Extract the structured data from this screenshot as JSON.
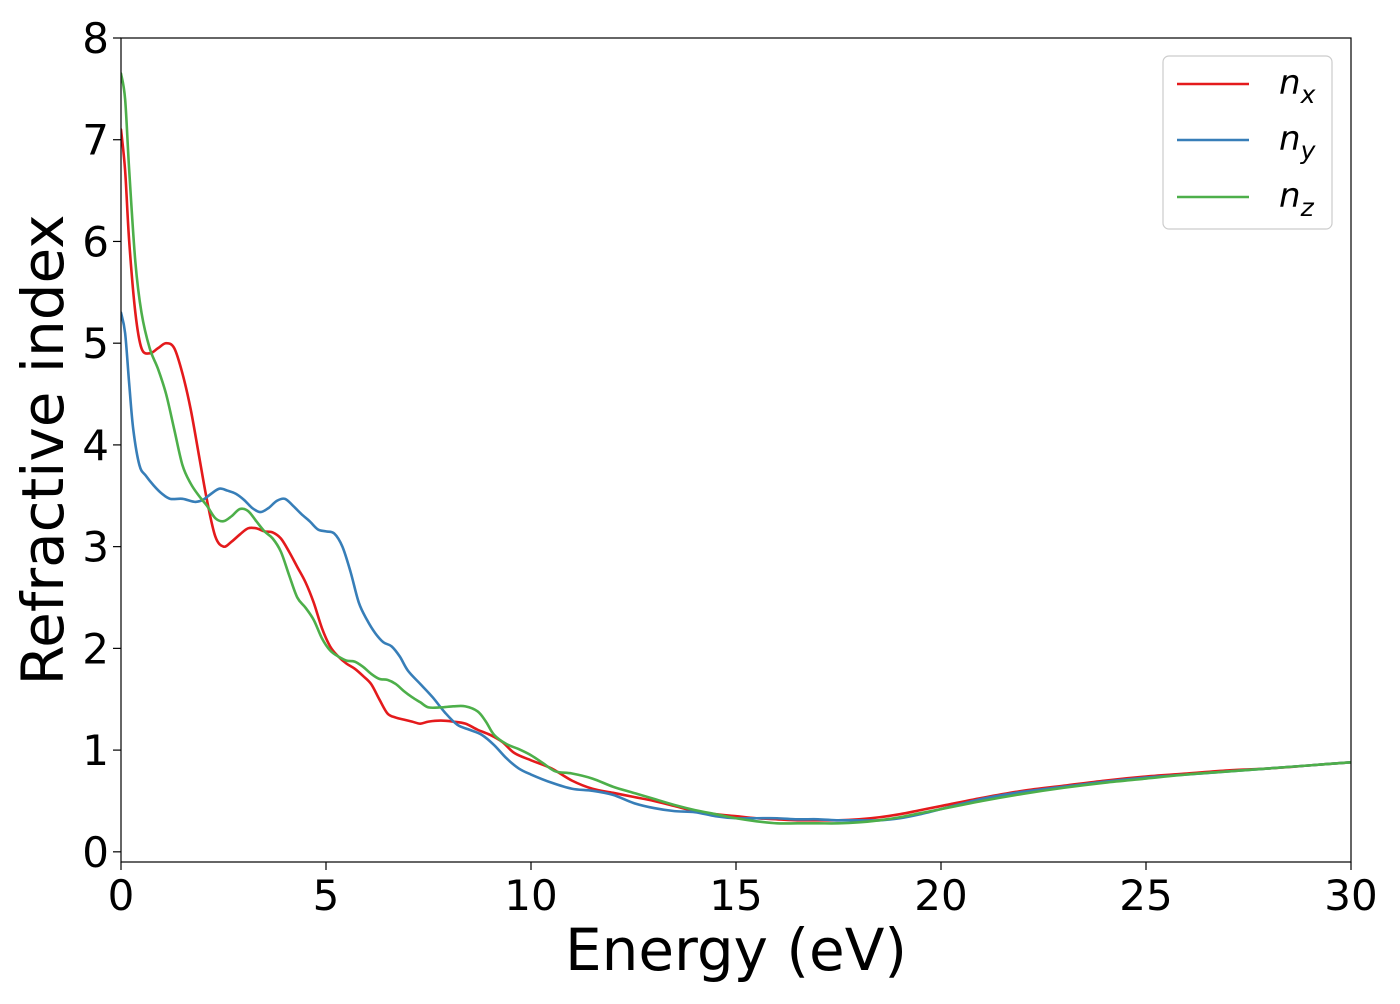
{
  "chart_data": {
    "type": "line",
    "xlabel": "Energy (eV)",
    "ylabel": "Refractive index",
    "xlim": [
      0,
      30
    ],
    "ylim": [
      -0.1,
      8
    ],
    "xticks": [
      0,
      5,
      10,
      15,
      20,
      25,
      30
    ],
    "yticks": [
      0,
      1,
      2,
      3,
      4,
      5,
      6,
      7,
      8
    ],
    "grid": false,
    "legend_position": "top-right",
    "series": [
      {
        "name": "n",
        "subscript": "x",
        "color": "#e41a1c",
        "points": [
          [
            0.0,
            7.1
          ],
          [
            0.1,
            6.7
          ],
          [
            0.2,
            6.0
          ],
          [
            0.35,
            5.3
          ],
          [
            0.5,
            4.95
          ],
          [
            0.7,
            4.9
          ],
          [
            0.9,
            4.95
          ],
          [
            1.1,
            5.0
          ],
          [
            1.3,
            4.95
          ],
          [
            1.5,
            4.7
          ],
          [
            1.7,
            4.35
          ],
          [
            1.9,
            3.9
          ],
          [
            2.1,
            3.45
          ],
          [
            2.3,
            3.1
          ],
          [
            2.5,
            3.0
          ],
          [
            2.7,
            3.05
          ],
          [
            2.9,
            3.12
          ],
          [
            3.1,
            3.18
          ],
          [
            3.3,
            3.18
          ],
          [
            3.5,
            3.15
          ],
          [
            3.7,
            3.14
          ],
          [
            3.9,
            3.08
          ],
          [
            4.1,
            2.95
          ],
          [
            4.3,
            2.8
          ],
          [
            4.5,
            2.65
          ],
          [
            4.7,
            2.45
          ],
          [
            4.9,
            2.2
          ],
          [
            5.1,
            2.02
          ],
          [
            5.3,
            1.92
          ],
          [
            5.5,
            1.85
          ],
          [
            5.7,
            1.8
          ],
          [
            5.9,
            1.73
          ],
          [
            6.1,
            1.65
          ],
          [
            6.3,
            1.5
          ],
          [
            6.5,
            1.36
          ],
          [
            6.7,
            1.32
          ],
          [
            6.9,
            1.3
          ],
          [
            7.1,
            1.28
          ],
          [
            7.3,
            1.26
          ],
          [
            7.5,
            1.28
          ],
          [
            7.8,
            1.29
          ],
          [
            8.1,
            1.28
          ],
          [
            8.4,
            1.26
          ],
          [
            8.7,
            1.2
          ],
          [
            9.0,
            1.15
          ],
          [
            9.3,
            1.08
          ],
          [
            9.6,
            0.97
          ],
          [
            10.0,
            0.9
          ],
          [
            10.5,
            0.82
          ],
          [
            11.0,
            0.7
          ],
          [
            11.5,
            0.62
          ],
          [
            12.0,
            0.58
          ],
          [
            12.5,
            0.54
          ],
          [
            13.0,
            0.5
          ],
          [
            13.5,
            0.45
          ],
          [
            14.0,
            0.4
          ],
          [
            14.5,
            0.37
          ],
          [
            15.0,
            0.35
          ],
          [
            15.5,
            0.33
          ],
          [
            16.0,
            0.32
          ],
          [
            16.5,
            0.31
          ],
          [
            17.0,
            0.31
          ],
          [
            17.5,
            0.31
          ],
          [
            18.0,
            0.32
          ],
          [
            18.5,
            0.34
          ],
          [
            19.0,
            0.37
          ],
          [
            19.5,
            0.41
          ],
          [
            20.0,
            0.45
          ],
          [
            21.0,
            0.53
          ],
          [
            22.0,
            0.6
          ],
          [
            23.0,
            0.65
          ],
          [
            24.0,
            0.7
          ],
          [
            25.0,
            0.74
          ],
          [
            26.0,
            0.77
          ],
          [
            27.0,
            0.8
          ],
          [
            28.0,
            0.82
          ],
          [
            29.0,
            0.85
          ],
          [
            30.0,
            0.88
          ]
        ]
      },
      {
        "name": "n",
        "subscript": "y",
        "color": "#377eb8",
        "points": [
          [
            0.0,
            5.3
          ],
          [
            0.1,
            5.1
          ],
          [
            0.2,
            4.6
          ],
          [
            0.3,
            4.15
          ],
          [
            0.45,
            3.8
          ],
          [
            0.6,
            3.7
          ],
          [
            0.8,
            3.6
          ],
          [
            1.0,
            3.52
          ],
          [
            1.2,
            3.47
          ],
          [
            1.5,
            3.47
          ],
          [
            1.8,
            3.44
          ],
          [
            2.0,
            3.46
          ],
          [
            2.2,
            3.52
          ],
          [
            2.4,
            3.57
          ],
          [
            2.6,
            3.55
          ],
          [
            2.8,
            3.52
          ],
          [
            3.0,
            3.46
          ],
          [
            3.2,
            3.38
          ],
          [
            3.4,
            3.34
          ],
          [
            3.6,
            3.38
          ],
          [
            3.8,
            3.45
          ],
          [
            4.0,
            3.47
          ],
          [
            4.2,
            3.4
          ],
          [
            4.4,
            3.32
          ],
          [
            4.6,
            3.25
          ],
          [
            4.8,
            3.17
          ],
          [
            5.0,
            3.15
          ],
          [
            5.2,
            3.13
          ],
          [
            5.4,
            3.0
          ],
          [
            5.6,
            2.75
          ],
          [
            5.8,
            2.45
          ],
          [
            6.0,
            2.28
          ],
          [
            6.2,
            2.15
          ],
          [
            6.4,
            2.06
          ],
          [
            6.6,
            2.02
          ],
          [
            6.8,
            1.92
          ],
          [
            7.0,
            1.78
          ],
          [
            7.3,
            1.65
          ],
          [
            7.6,
            1.52
          ],
          [
            7.9,
            1.37
          ],
          [
            8.2,
            1.25
          ],
          [
            8.5,
            1.2
          ],
          [
            8.8,
            1.15
          ],
          [
            9.1,
            1.05
          ],
          [
            9.4,
            0.92
          ],
          [
            9.7,
            0.82
          ],
          [
            10.0,
            0.76
          ],
          [
            10.5,
            0.68
          ],
          [
            11.0,
            0.62
          ],
          [
            11.5,
            0.6
          ],
          [
            12.0,
            0.56
          ],
          [
            12.5,
            0.48
          ],
          [
            13.0,
            0.43
          ],
          [
            13.5,
            0.4
          ],
          [
            14.0,
            0.39
          ],
          [
            14.5,
            0.35
          ],
          [
            15.0,
            0.33
          ],
          [
            15.5,
            0.33
          ],
          [
            16.0,
            0.33
          ],
          [
            16.5,
            0.32
          ],
          [
            17.0,
            0.32
          ],
          [
            17.5,
            0.31
          ],
          [
            18.0,
            0.31
          ],
          [
            18.5,
            0.31
          ],
          [
            19.0,
            0.33
          ],
          [
            19.5,
            0.37
          ],
          [
            20.0,
            0.42
          ],
          [
            21.0,
            0.52
          ],
          [
            22.0,
            0.59
          ],
          [
            23.0,
            0.64
          ],
          [
            24.0,
            0.69
          ],
          [
            25.0,
            0.73
          ],
          [
            26.0,
            0.76
          ],
          [
            27.0,
            0.79
          ],
          [
            28.0,
            0.82
          ],
          [
            29.0,
            0.85
          ],
          [
            30.0,
            0.88
          ]
        ]
      },
      {
        "name": "n",
        "subscript": "z",
        "color": "#4daf4a",
        "points": [
          [
            0.0,
            7.65
          ],
          [
            0.1,
            7.4
          ],
          [
            0.2,
            6.7
          ],
          [
            0.35,
            5.8
          ],
          [
            0.5,
            5.3
          ],
          [
            0.7,
            4.95
          ],
          [
            0.9,
            4.75
          ],
          [
            1.1,
            4.5
          ],
          [
            1.3,
            4.15
          ],
          [
            1.5,
            3.8
          ],
          [
            1.7,
            3.62
          ],
          [
            1.9,
            3.5
          ],
          [
            2.1,
            3.4
          ],
          [
            2.3,
            3.28
          ],
          [
            2.5,
            3.25
          ],
          [
            2.7,
            3.3
          ],
          [
            2.9,
            3.37
          ],
          [
            3.1,
            3.35
          ],
          [
            3.3,
            3.25
          ],
          [
            3.5,
            3.15
          ],
          [
            3.7,
            3.08
          ],
          [
            3.9,
            2.95
          ],
          [
            4.1,
            2.72
          ],
          [
            4.3,
            2.5
          ],
          [
            4.5,
            2.4
          ],
          [
            4.7,
            2.28
          ],
          [
            4.9,
            2.1
          ],
          [
            5.1,
            1.98
          ],
          [
            5.3,
            1.92
          ],
          [
            5.5,
            1.88
          ],
          [
            5.7,
            1.87
          ],
          [
            5.9,
            1.82
          ],
          [
            6.1,
            1.75
          ],
          [
            6.3,
            1.7
          ],
          [
            6.5,
            1.69
          ],
          [
            6.7,
            1.65
          ],
          [
            6.9,
            1.58
          ],
          [
            7.1,
            1.52
          ],
          [
            7.3,
            1.47
          ],
          [
            7.5,
            1.42
          ],
          [
            7.8,
            1.42
          ],
          [
            8.1,
            1.43
          ],
          [
            8.4,
            1.43
          ],
          [
            8.7,
            1.38
          ],
          [
            8.9,
            1.28
          ],
          [
            9.1,
            1.15
          ],
          [
            9.4,
            1.06
          ],
          [
            9.7,
            1.01
          ],
          [
            10.0,
            0.95
          ],
          [
            10.3,
            0.87
          ],
          [
            10.6,
            0.79
          ],
          [
            11.0,
            0.77
          ],
          [
            11.5,
            0.72
          ],
          [
            12.0,
            0.64
          ],
          [
            12.5,
            0.58
          ],
          [
            13.0,
            0.52
          ],
          [
            13.5,
            0.46
          ],
          [
            14.0,
            0.41
          ],
          [
            14.5,
            0.37
          ],
          [
            15.0,
            0.33
          ],
          [
            15.5,
            0.3
          ],
          [
            16.0,
            0.28
          ],
          [
            16.5,
            0.28
          ],
          [
            17.0,
            0.28
          ],
          [
            17.5,
            0.28
          ],
          [
            18.0,
            0.29
          ],
          [
            18.5,
            0.31
          ],
          [
            19.0,
            0.34
          ],
          [
            19.5,
            0.38
          ],
          [
            20.0,
            0.42
          ],
          [
            21.0,
            0.5
          ],
          [
            22.0,
            0.57
          ],
          [
            23.0,
            0.63
          ],
          [
            24.0,
            0.68
          ],
          [
            25.0,
            0.72
          ],
          [
            26.0,
            0.76
          ],
          [
            27.0,
            0.79
          ],
          [
            28.0,
            0.82
          ],
          [
            29.0,
            0.85
          ],
          [
            30.0,
            0.88
          ]
        ]
      }
    ]
  }
}
